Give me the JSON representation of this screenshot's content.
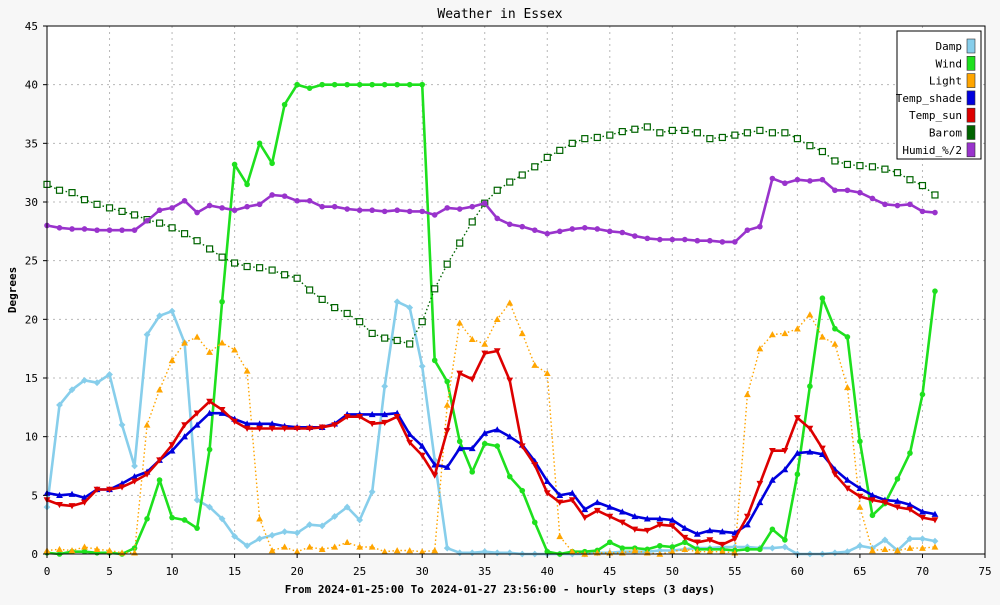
{
  "chart_data": {
    "type": "line",
    "title": "Weather in Essex",
    "xlabel": "From 2024-01-25:00 To 2024-01-27 23:56:00 - hourly steps (3 days)",
    "ylabel": "Degrees",
    "xlim": [
      0,
      75
    ],
    "ylim": [
      0,
      45
    ],
    "xticks": [
      0,
      5,
      10,
      15,
      20,
      25,
      30,
      35,
      40,
      45,
      50,
      55,
      60,
      65,
      70,
      75
    ],
    "yticks": [
      0,
      5,
      10,
      15,
      20,
      25,
      30,
      35,
      40,
      45
    ],
    "grid": true,
    "legend_position": "top-right",
    "x": [
      0,
      1,
      2,
      3,
      4,
      5,
      6,
      7,
      8,
      9,
      10,
      11,
      12,
      13,
      14,
      15,
      16,
      17,
      18,
      19,
      20,
      21,
      22,
      23,
      24,
      25,
      26,
      27,
      28,
      29,
      30,
      31,
      32,
      33,
      34,
      35,
      36,
      37,
      38,
      39,
      40,
      41,
      42,
      43,
      44,
      45,
      46,
      47,
      48,
      49,
      50,
      51,
      52,
      53,
      54,
      55,
      56,
      57,
      58,
      59,
      60,
      61,
      62,
      63,
      64,
      65,
      66,
      67,
      68,
      69,
      70,
      71
    ],
    "series": [
      {
        "name": "Damp",
        "color": "#87ceeb",
        "style": "solid",
        "marker": "diamond",
        "values": [
          4,
          12.7,
          14,
          14.8,
          14.6,
          15.3,
          11,
          7.5,
          18.7,
          20.3,
          20.7,
          18,
          4.6,
          4,
          3,
          1.5,
          0.7,
          1.3,
          1.6,
          1.9,
          1.8,
          2.5,
          2.4,
          3.2,
          4,
          2.9,
          5.3,
          14.3,
          21.5,
          21,
          16,
          8,
          0.5,
          0.1,
          0.1,
          0.2,
          0.1,
          0.1,
          0,
          0,
          0,
          0,
          0,
          0,
          0.1,
          0.1,
          0.2,
          0.2,
          0.2,
          0.3,
          0.3,
          0.4,
          0.5,
          0.5,
          0.6,
          0.6,
          0.6,
          0.5,
          0.5,
          0.6,
          0,
          0,
          0,
          0.1,
          0.2,
          0.7,
          0.5,
          1.2,
          0.3,
          1.3,
          1.3,
          1.1
        ]
      },
      {
        "name": "Wind",
        "color": "#1ee01e",
        "style": "solid",
        "marker": "circle",
        "values": [
          0.1,
          0,
          0.2,
          0.2,
          0.1,
          0.1,
          0,
          0.5,
          3,
          6.3,
          3.1,
          2.9,
          2.2,
          8.9,
          21.5,
          33.2,
          31.5,
          35,
          33.3,
          38.3,
          40,
          39.7,
          40,
          40,
          40,
          40,
          40,
          40,
          40,
          40,
          40,
          16.5,
          14.7,
          9.6,
          7,
          9.4,
          9.2,
          6.6,
          5.4,
          2.7,
          0.2,
          0,
          0.2,
          0.2,
          0.3,
          1,
          0.5,
          0.5,
          0.4,
          0.7,
          0.6,
          1,
          0.4,
          0.4,
          0.4,
          0.3,
          0.4,
          0.4,
          2.1,
          1.2,
          6.8,
          14.3,
          21.8,
          19.2,
          18.5,
          9.6,
          3.3,
          4.3,
          6.4,
          8.6,
          13.6,
          22.4
        ]
      },
      {
        "name": "Light",
        "color": "#ffa500",
        "style": "dotted",
        "marker": "triangle",
        "values": [
          0.3,
          0.4,
          0.3,
          0.6,
          0.4,
          0.3,
          0.1,
          0.1,
          11,
          14,
          16.5,
          18,
          18.5,
          17.2,
          18,
          17.4,
          15.6,
          3,
          0.3,
          0.6,
          0.2,
          0.6,
          0.4,
          0.6,
          1,
          0.6,
          0.6,
          0.2,
          0.3,
          0.3,
          0.2,
          0.3,
          12.7,
          19.7,
          18.3,
          17.9,
          20,
          21.4,
          18.8,
          16.1,
          15.4,
          1.5,
          0.2,
          0,
          0.1,
          0.1,
          0.1,
          0.3,
          0.1,
          0,
          0.2,
          0.4,
          0.2,
          0.2,
          0.2,
          0.1,
          13.6,
          17.5,
          18.7,
          18.8,
          19.2,
          20.4,
          18.5,
          17.9,
          14.2,
          4,
          0.3,
          0.4,
          0.3,
          0.5,
          0.5,
          0.6
        ]
      },
      {
        "name": "Temp_shade",
        "color": "#0000dd",
        "style": "solid",
        "marker": "triangle",
        "values": [
          5.2,
          5,
          5.1,
          4.8,
          5.5,
          5.5,
          6,
          6.6,
          7,
          8,
          8.8,
          10,
          11,
          12,
          12,
          11.5,
          11.1,
          11.1,
          11.1,
          10.9,
          10.8,
          10.8,
          10.8,
          11.1,
          11.9,
          11.9,
          11.9,
          11.9,
          12,
          10.2,
          9.2,
          7.6,
          7.4,
          9,
          9,
          10.3,
          10.6,
          10,
          9.3,
          7.9,
          6.2,
          5,
          5.2,
          3.8,
          4.4,
          4,
          3.6,
          3.2,
          3,
          3,
          2.9,
          2.2,
          1.7,
          2,
          1.9,
          1.8,
          2.5,
          4.4,
          6.3,
          7.2,
          8.6,
          8.7,
          8.5,
          7.2,
          6.3,
          5.6,
          5,
          4.6,
          4.5,
          4.2,
          3.6,
          3.4
        ]
      },
      {
        "name": "Temp_sun",
        "color": "#dd0000",
        "style": "solid",
        "marker": "triangle-down",
        "values": [
          4.6,
          4.2,
          4.1,
          4.4,
          5.5,
          5.5,
          5.7,
          6.2,
          6.8,
          8,
          9.3,
          11,
          12,
          13,
          12.3,
          11.3,
          10.7,
          10.7,
          10.7,
          10.7,
          10.7,
          10.7,
          10.8,
          11,
          11.7,
          11.7,
          11.1,
          11.2,
          11.7,
          9.5,
          8.4,
          6.7,
          10.5,
          15.4,
          14.9,
          17.1,
          17.3,
          14.8,
          9.2,
          7.6,
          5.2,
          4.4,
          4.6,
          3.1,
          3.7,
          3.2,
          2.7,
          2.1,
          2,
          2.5,
          2.4,
          1.4,
          1,
          1.2,
          0.8,
          1.3,
          3.2,
          6,
          8.8,
          8.8,
          11.6,
          10.7,
          9,
          6.8,
          5.6,
          4.9,
          4.6,
          4.4,
          4,
          3.8,
          3.1,
          2.9
        ]
      },
      {
        "name": "Barom",
        "color": "#006400",
        "style": "dotted",
        "marker": "square",
        "values": [
          31.5,
          31,
          30.8,
          30.2,
          29.8,
          29.5,
          29.2,
          28.9,
          28.5,
          28.2,
          27.8,
          27.3,
          26.7,
          26,
          25.3,
          24.8,
          24.5,
          24.4,
          24.2,
          23.8,
          23.5,
          22.5,
          21.7,
          21,
          20.5,
          19.8,
          18.8,
          18.4,
          18.2,
          17.9,
          19.8,
          22.6,
          24.7,
          26.5,
          28.3,
          29.9,
          31,
          31.7,
          32.3,
          33,
          33.8,
          34.4,
          35,
          35.4,
          35.5,
          35.7,
          36,
          36.2,
          36.4,
          35.9,
          36.1,
          36.1,
          35.9,
          35.4,
          35.5,
          35.7,
          35.9,
          36.1,
          35.9,
          35.9,
          35.4,
          34.8,
          34.3,
          33.5,
          33.2,
          33.1,
          33,
          32.8,
          32.5,
          31.9,
          31.4,
          30.6
        ]
      },
      {
        "name": "Humid_%/2",
        "color": "#9933cc",
        "style": "solid",
        "marker": "circle",
        "values": [
          28,
          27.8,
          27.7,
          27.7,
          27.6,
          27.6,
          27.6,
          27.6,
          28.4,
          29.3,
          29.5,
          30.1,
          29.1,
          29.7,
          29.5,
          29.3,
          29.6,
          29.8,
          30.6,
          30.5,
          30.1,
          30.1,
          29.6,
          29.6,
          29.4,
          29.3,
          29.3,
          29.2,
          29.3,
          29.2,
          29.2,
          28.9,
          29.5,
          29.4,
          29.6,
          29.9,
          28.6,
          28.1,
          27.9,
          27.6,
          27.3,
          27.5,
          27.7,
          27.8,
          27.7,
          27.5,
          27.4,
          27.1,
          26.9,
          26.8,
          26.8,
          26.8,
          26.7,
          26.7,
          26.6,
          26.6,
          27.6,
          27.9,
          32,
          31.6,
          31.9,
          31.8,
          31.9,
          31,
          31,
          30.8,
          30.3,
          29.8,
          29.7,
          29.8,
          29.2,
          29.1
        ]
      }
    ]
  }
}
